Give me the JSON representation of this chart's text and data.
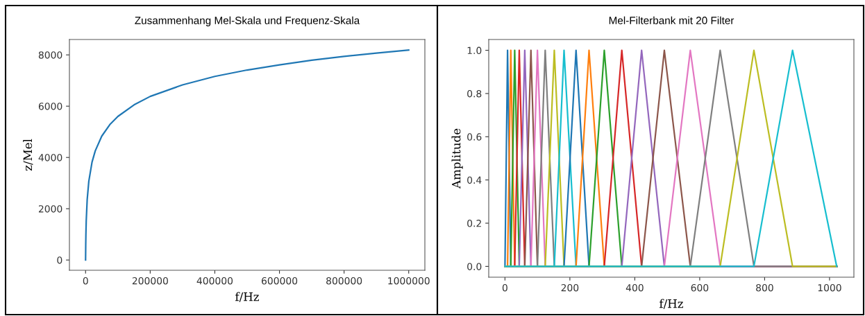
{
  "chart_data": [
    {
      "type": "line",
      "title": "Zusammenhang Mel-Skala und Frequenz-Skala",
      "xlabel": "f/Hz",
      "ylabel": "z/Mel",
      "grid": false,
      "xlim": [
        -50000,
        1050000
      ],
      "xticks": [
        0,
        200000,
        400000,
        600000,
        800000,
        1000000
      ],
      "ylim": [
        -400,
        8600
      ],
      "yticks": [
        0,
        2000,
        4000,
        6000,
        8000
      ],
      "series": [
        {
          "color": "#1f77b4",
          "x": [
            0,
            500,
            1000,
            2000,
            5000,
            10000,
            20000,
            30000,
            50000,
            75000,
            100000,
            150000,
            200000,
            300000,
            400000,
            500000,
            600000,
            700000,
            800000,
            900000,
            1000000
          ],
          "values": [
            0,
            610,
            1000,
            1520,
            2360,
            3070,
            3820,
            4260,
            4830,
            5280,
            5600,
            6050,
            6380,
            6830,
            7160,
            7410,
            7610,
            7790,
            7940,
            8070,
            8190
          ]
        }
      ]
    },
    {
      "type": "line",
      "title": "Mel-Filterbank mit 20 Filter",
      "xlabel": "f/Hz",
      "ylabel": "Amplitude",
      "grid": false,
      "xlim": [
        -50,
        1075
      ],
      "xticks": [
        0,
        200,
        400,
        600,
        800,
        1000
      ],
      "ylim": [
        -0.05,
        1.05
      ],
      "yticks": [
        {
          "value": 0,
          "label": "0.0"
        },
        {
          "value": 0.2,
          "label": "0.2"
        },
        {
          "value": 0.4,
          "label": "0.4"
        },
        {
          "value": 0.6,
          "label": "0.6"
        },
        {
          "value": 0.8,
          "label": "0.8"
        },
        {
          "value": 1,
          "label": "1.0"
        }
      ],
      "series": [
        {
          "color": "#1f77b4",
          "x": [
            0,
            0,
            8,
            18,
            1022
          ],
          "values": [
            0,
            0,
            1,
            0,
            0
          ]
        },
        {
          "color": "#ff7f0e",
          "x": [
            0,
            8,
            18,
            30,
            1022
          ],
          "values": [
            0,
            0,
            1,
            0,
            0
          ]
        },
        {
          "color": "#2ca02c",
          "x": [
            0,
            18,
            30,
            44,
            1022
          ],
          "values": [
            0,
            0,
            1,
            0,
            0
          ]
        },
        {
          "color": "#d62728",
          "x": [
            0,
            30,
            44,
            61,
            1022
          ],
          "values": [
            0,
            0,
            1,
            0,
            0
          ]
        },
        {
          "color": "#9467bd",
          "x": [
            0,
            44,
            61,
            80,
            1022
          ],
          "values": [
            0,
            0,
            1,
            0,
            0
          ]
        },
        {
          "color": "#8c564b",
          "x": [
            0,
            61,
            80,
            100,
            1022
          ],
          "values": [
            0,
            0,
            1,
            0,
            0
          ]
        },
        {
          "color": "#e377c2",
          "x": [
            0,
            80,
            100,
            124,
            1022
          ],
          "values": [
            0,
            0,
            1,
            0,
            0
          ]
        },
        {
          "color": "#7f7f7f",
          "x": [
            0,
            100,
            124,
            152,
            1022
          ],
          "values": [
            0,
            0,
            1,
            0,
            0
          ]
        },
        {
          "color": "#bcbd22",
          "x": [
            0,
            124,
            152,
            182,
            1022
          ],
          "values": [
            0,
            0,
            1,
            0,
            0
          ]
        },
        {
          "color": "#17becf",
          "x": [
            0,
            152,
            182,
            219,
            1022
          ],
          "values": [
            0,
            0,
            1,
            0,
            0
          ]
        },
        {
          "color": "#1f77b4",
          "x": [
            0,
            182,
            219,
            259,
            1022
          ],
          "values": [
            0,
            0,
            1,
            0,
            0
          ]
        },
        {
          "color": "#ff7f0e",
          "x": [
            0,
            219,
            259,
            306,
            1022
          ],
          "values": [
            0,
            0,
            1,
            0,
            0
          ]
        },
        {
          "color": "#2ca02c",
          "x": [
            0,
            259,
            306,
            360,
            1022
          ],
          "values": [
            0,
            0,
            1,
            0,
            0
          ]
        },
        {
          "color": "#d62728",
          "x": [
            0,
            306,
            360,
            421,
            1022
          ],
          "values": [
            0,
            0,
            1,
            0,
            0
          ]
        },
        {
          "color": "#9467bd",
          "x": [
            0,
            360,
            421,
            491,
            1022
          ],
          "values": [
            0,
            0,
            1,
            0,
            0
          ]
        },
        {
          "color": "#8c564b",
          "x": [
            0,
            421,
            491,
            571,
            1022
          ],
          "values": [
            0,
            0,
            1,
            0,
            0
          ]
        },
        {
          "color": "#e377c2",
          "x": [
            0,
            491,
            571,
            663,
            1022
          ],
          "values": [
            0,
            0,
            1,
            0,
            0
          ]
        },
        {
          "color": "#7f7f7f",
          "x": [
            0,
            571,
            663,
            767,
            1022
          ],
          "values": [
            0,
            0,
            1,
            0,
            0
          ]
        },
        {
          "color": "#bcbd22",
          "x": [
            0,
            663,
            767,
            886,
            1022
          ],
          "values": [
            0,
            0,
            1,
            0,
            0
          ]
        },
        {
          "color": "#17becf",
          "x": [
            0,
            767,
            886,
            1022,
            1022
          ],
          "values": [
            0,
            0,
            1,
            0,
            0
          ]
        }
      ]
    }
  ]
}
